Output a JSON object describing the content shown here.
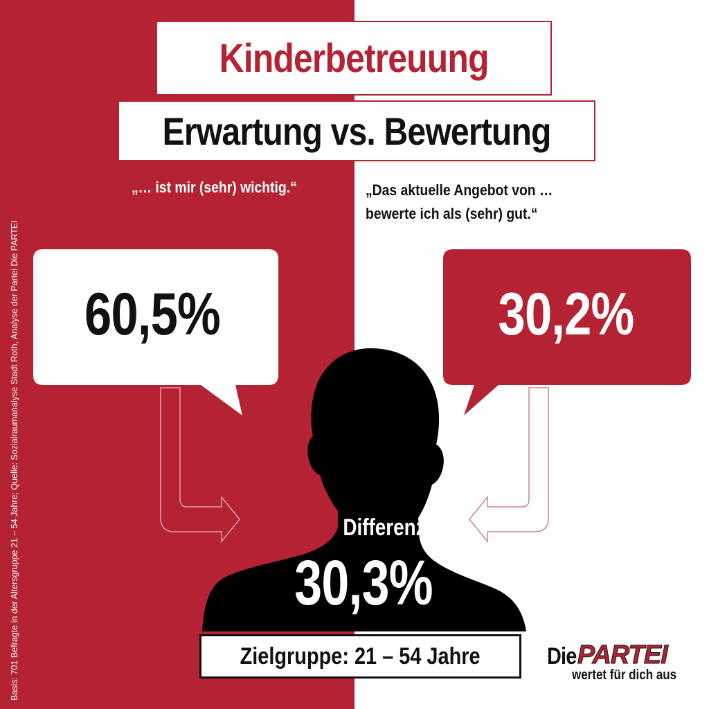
{
  "title": "Kinderbetreuung",
  "subtitle": "Erwartung vs. Bewertung",
  "quote_left": "„… ist mir (sehr) wichtig.“",
  "quote_right": [
    "„Das aktuelle Angebot von …",
    "bewerte ich als (sehr) gut.“"
  ],
  "value_left": "60,5%",
  "value_right": "30,2%",
  "difference_label": "Differenz",
  "difference_value": "30,3%",
  "target_group": "Zielgruppe: 21 – 54 Jahre",
  "source_note": "Basis: 701 Befragte in der Altersgruppe 21 – 54 Jahre; Quelle: Sozialraumanalyse Stadt Roth, Analyse der Partei Die PARTEI",
  "logo": {
    "die": "Die",
    "partei": "PARTEI",
    "tagline": "wertet für dich aus"
  },
  "colors": {
    "brand_red": "#b42233",
    "black": "#111111",
    "white": "#ffffff"
  }
}
